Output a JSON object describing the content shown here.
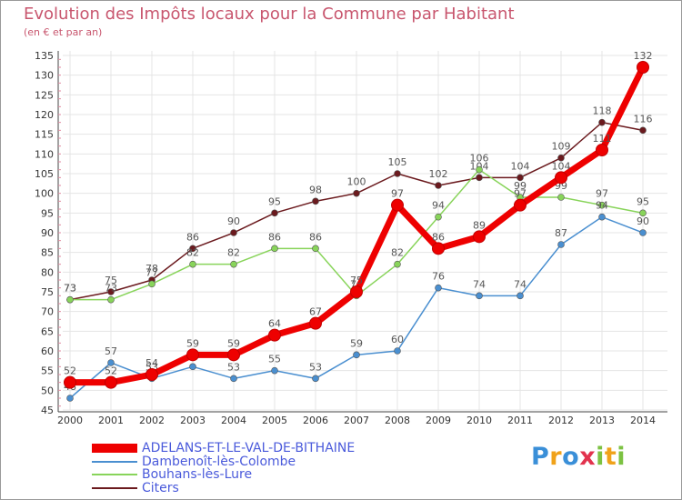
{
  "title": "Evolution des Impôts locaux pour la Commune par Habitant",
  "subtitle": "(en € et par an)",
  "logo": {
    "text": "Proxiti",
    "letters": [
      "P",
      "r",
      "o",
      "x",
      "i",
      "t",
      "i"
    ]
  },
  "chart_data": {
    "type": "line",
    "title": "Evolution des Impôts locaux pour la Commune par Habitant",
    "subtitle": "(en € et par an)",
    "xlabel": "",
    "ylabel": "",
    "ylim": [
      45,
      135
    ],
    "yticks": [
      45,
      50,
      55,
      60,
      65,
      70,
      75,
      80,
      85,
      90,
      95,
      100,
      105,
      110,
      115,
      120,
      125,
      130,
      135
    ],
    "categories": [
      "2000",
      "2001",
      "2002",
      "2003",
      "2004",
      "2005",
      "2006",
      "2007",
      "2008",
      "2009",
      "2010",
      "2011",
      "2012",
      "2013",
      "2014"
    ],
    "grid": true,
    "series": [
      {
        "name": "Citers",
        "color": "#6b1a1e",
        "values": [
          73,
          75,
          78,
          86,
          90,
          95,
          98,
          100,
          105,
          102,
          104,
          104,
          109,
          118,
          116
        ]
      },
      {
        "name": "Bouhans-lès-Lure",
        "color": "#88d45a",
        "values": [
          73,
          73,
          77,
          82,
          82,
          86,
          86,
          74,
          82,
          94,
          106,
          99,
          99,
          97,
          95
        ]
      },
      {
        "name": "Dambenoît-lès-Colombe",
        "color": "#4a8fd0",
        "values": [
          48,
          57,
          53,
          56,
          53,
          55,
          53,
          59,
          60,
          76,
          74,
          74,
          87,
          94,
          90
        ]
      },
      {
        "name": "ADELANS-ET-LE-VAL-DE-BITHAINE",
        "color": "#ee0000",
        "values": [
          52,
          52,
          54,
          59,
          59,
          64,
          67,
          75,
          97,
          86,
          89,
          97,
          104,
          111,
          132
        ]
      }
    ],
    "data_labels": [
      [
        "73",
        "75",
        "78",
        "86",
        "90",
        "95",
        "98",
        "100",
        "105",
        "102",
        "104",
        "104",
        "109",
        "118",
        "116"
      ],
      [
        "73",
        "73",
        "77",
        "82",
        "82",
        "86",
        "86",
        "74",
        "82",
        "94",
        "106",
        "99",
        "99",
        "97",
        "95"
      ],
      [
        "48",
        "57",
        "53",
        "56",
        "53",
        "55",
        "53",
        "59",
        "60",
        "76",
        "74",
        "74",
        "87",
        "94",
        "90"
      ],
      [
        "52",
        "52",
        "54",
        "59",
        "59",
        "64",
        "67",
        "75",
        "97",
        "86",
        "89",
        "97",
        "104",
        "111",
        "132"
      ]
    ],
    "legend": {
      "placement": "bottom-left",
      "entries": [
        "ADELANS-ET-LE-VAL-DE-BITHAINE",
        "Dambenoît-lès-Colombe",
        "Bouhans-lès-Lure",
        "Citers"
      ],
      "colors": [
        "#ee0000",
        "#4a8fd0",
        "#88d45a",
        "#6b1a1e"
      ]
    }
  }
}
